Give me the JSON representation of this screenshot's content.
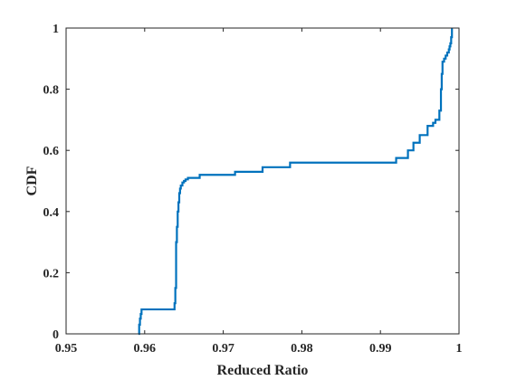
{
  "chart_data": {
    "type": "line",
    "title": "",
    "xlabel": "Reduced Ratio",
    "ylabel": "CDF",
    "xlim": [
      0.95,
      1.0
    ],
    "ylim": [
      0,
      1
    ],
    "xticks": [
      0.95,
      0.96,
      0.97,
      0.98,
      0.99,
      1.0
    ],
    "xtick_labels": [
      "0.95",
      "0.96",
      "0.97",
      "0.98",
      "0.99",
      "1"
    ],
    "yticks": [
      0,
      0.2,
      0.4,
      0.6,
      0.8,
      1.0
    ],
    "ytick_labels": [
      "0",
      "0.2",
      "0.4",
      "0.6",
      "0.8",
      "1"
    ],
    "grid": false,
    "legend": "none",
    "line_color": "#0072bd",
    "series": [
      {
        "step": "post",
        "x": [
          0.9592,
          0.9593,
          0.9594,
          0.9595,
          0.9596,
          0.9638,
          0.9639,
          0.964,
          0.9641,
          0.9642,
          0.9643,
          0.9644,
          0.9645,
          0.9646,
          0.9648,
          0.965,
          0.9652,
          0.9655,
          0.967,
          0.9715,
          0.975,
          0.9785,
          0.992,
          0.9935,
          0.9942,
          0.995,
          0.996,
          0.9967,
          0.997,
          0.9975,
          0.9977,
          0.9978,
          0.9979,
          0.9981,
          0.9983,
          0.9985,
          0.9987,
          0.9988,
          0.9989,
          0.999,
          0.9991
        ],
        "y": [
          0.0,
          0.03,
          0.05,
          0.065,
          0.08,
          0.1,
          0.15,
          0.3,
          0.35,
          0.4,
          0.43,
          0.46,
          0.475,
          0.485,
          0.495,
          0.5,
          0.505,
          0.51,
          0.52,
          0.53,
          0.545,
          0.56,
          0.575,
          0.6,
          0.625,
          0.65,
          0.68,
          0.69,
          0.7,
          0.73,
          0.8,
          0.85,
          0.89,
          0.9,
          0.91,
          0.92,
          0.93,
          0.94,
          0.95,
          0.97,
          1.0
        ]
      }
    ]
  }
}
